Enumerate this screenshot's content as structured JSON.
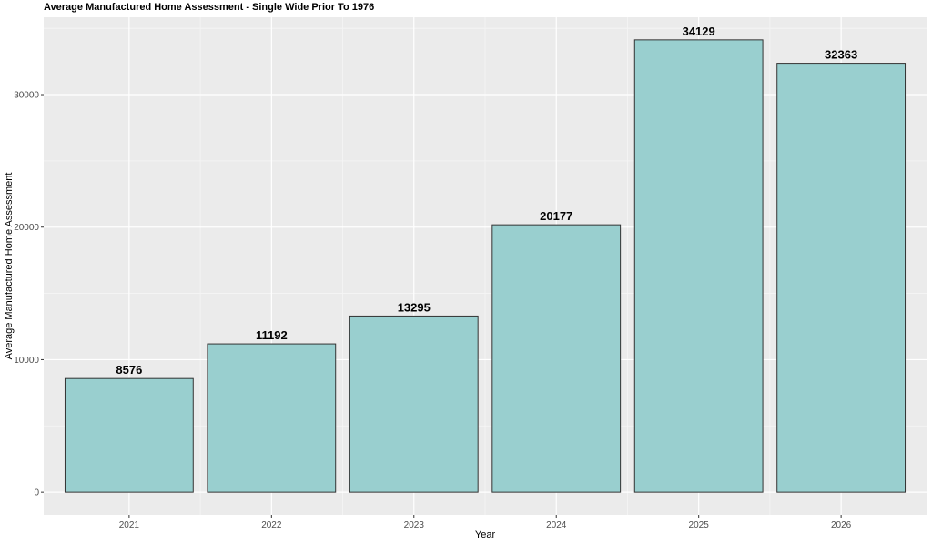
{
  "chart_data": {
    "type": "bar",
    "title": "Average Manufactured Home Assessment - Single Wide Prior To 1976",
    "xlabel": "Year",
    "ylabel": "Average Manufactured Home Assessment",
    "categories": [
      "2021",
      "2022",
      "2023",
      "2024",
      "2025",
      "2026"
    ],
    "values": [
      8576,
      11192,
      13295,
      20177,
      34129,
      32363
    ],
    "data_labels": [
      "8576",
      "11192",
      "13295",
      "20177",
      "34129",
      "32363"
    ],
    "yticks": [
      0,
      10000,
      20000,
      30000
    ],
    "ytick_labels": [
      "0",
      "10000",
      "20000",
      "30000"
    ],
    "ylim": [
      -1706,
      35835
    ],
    "grid": true,
    "colors": {
      "bar_fill": "#99cfcf",
      "bar_stroke": "#333333",
      "panel_bg": "#ebebeb",
      "grid_major": "#ffffff",
      "grid_minor": "#f5f5f5"
    }
  }
}
